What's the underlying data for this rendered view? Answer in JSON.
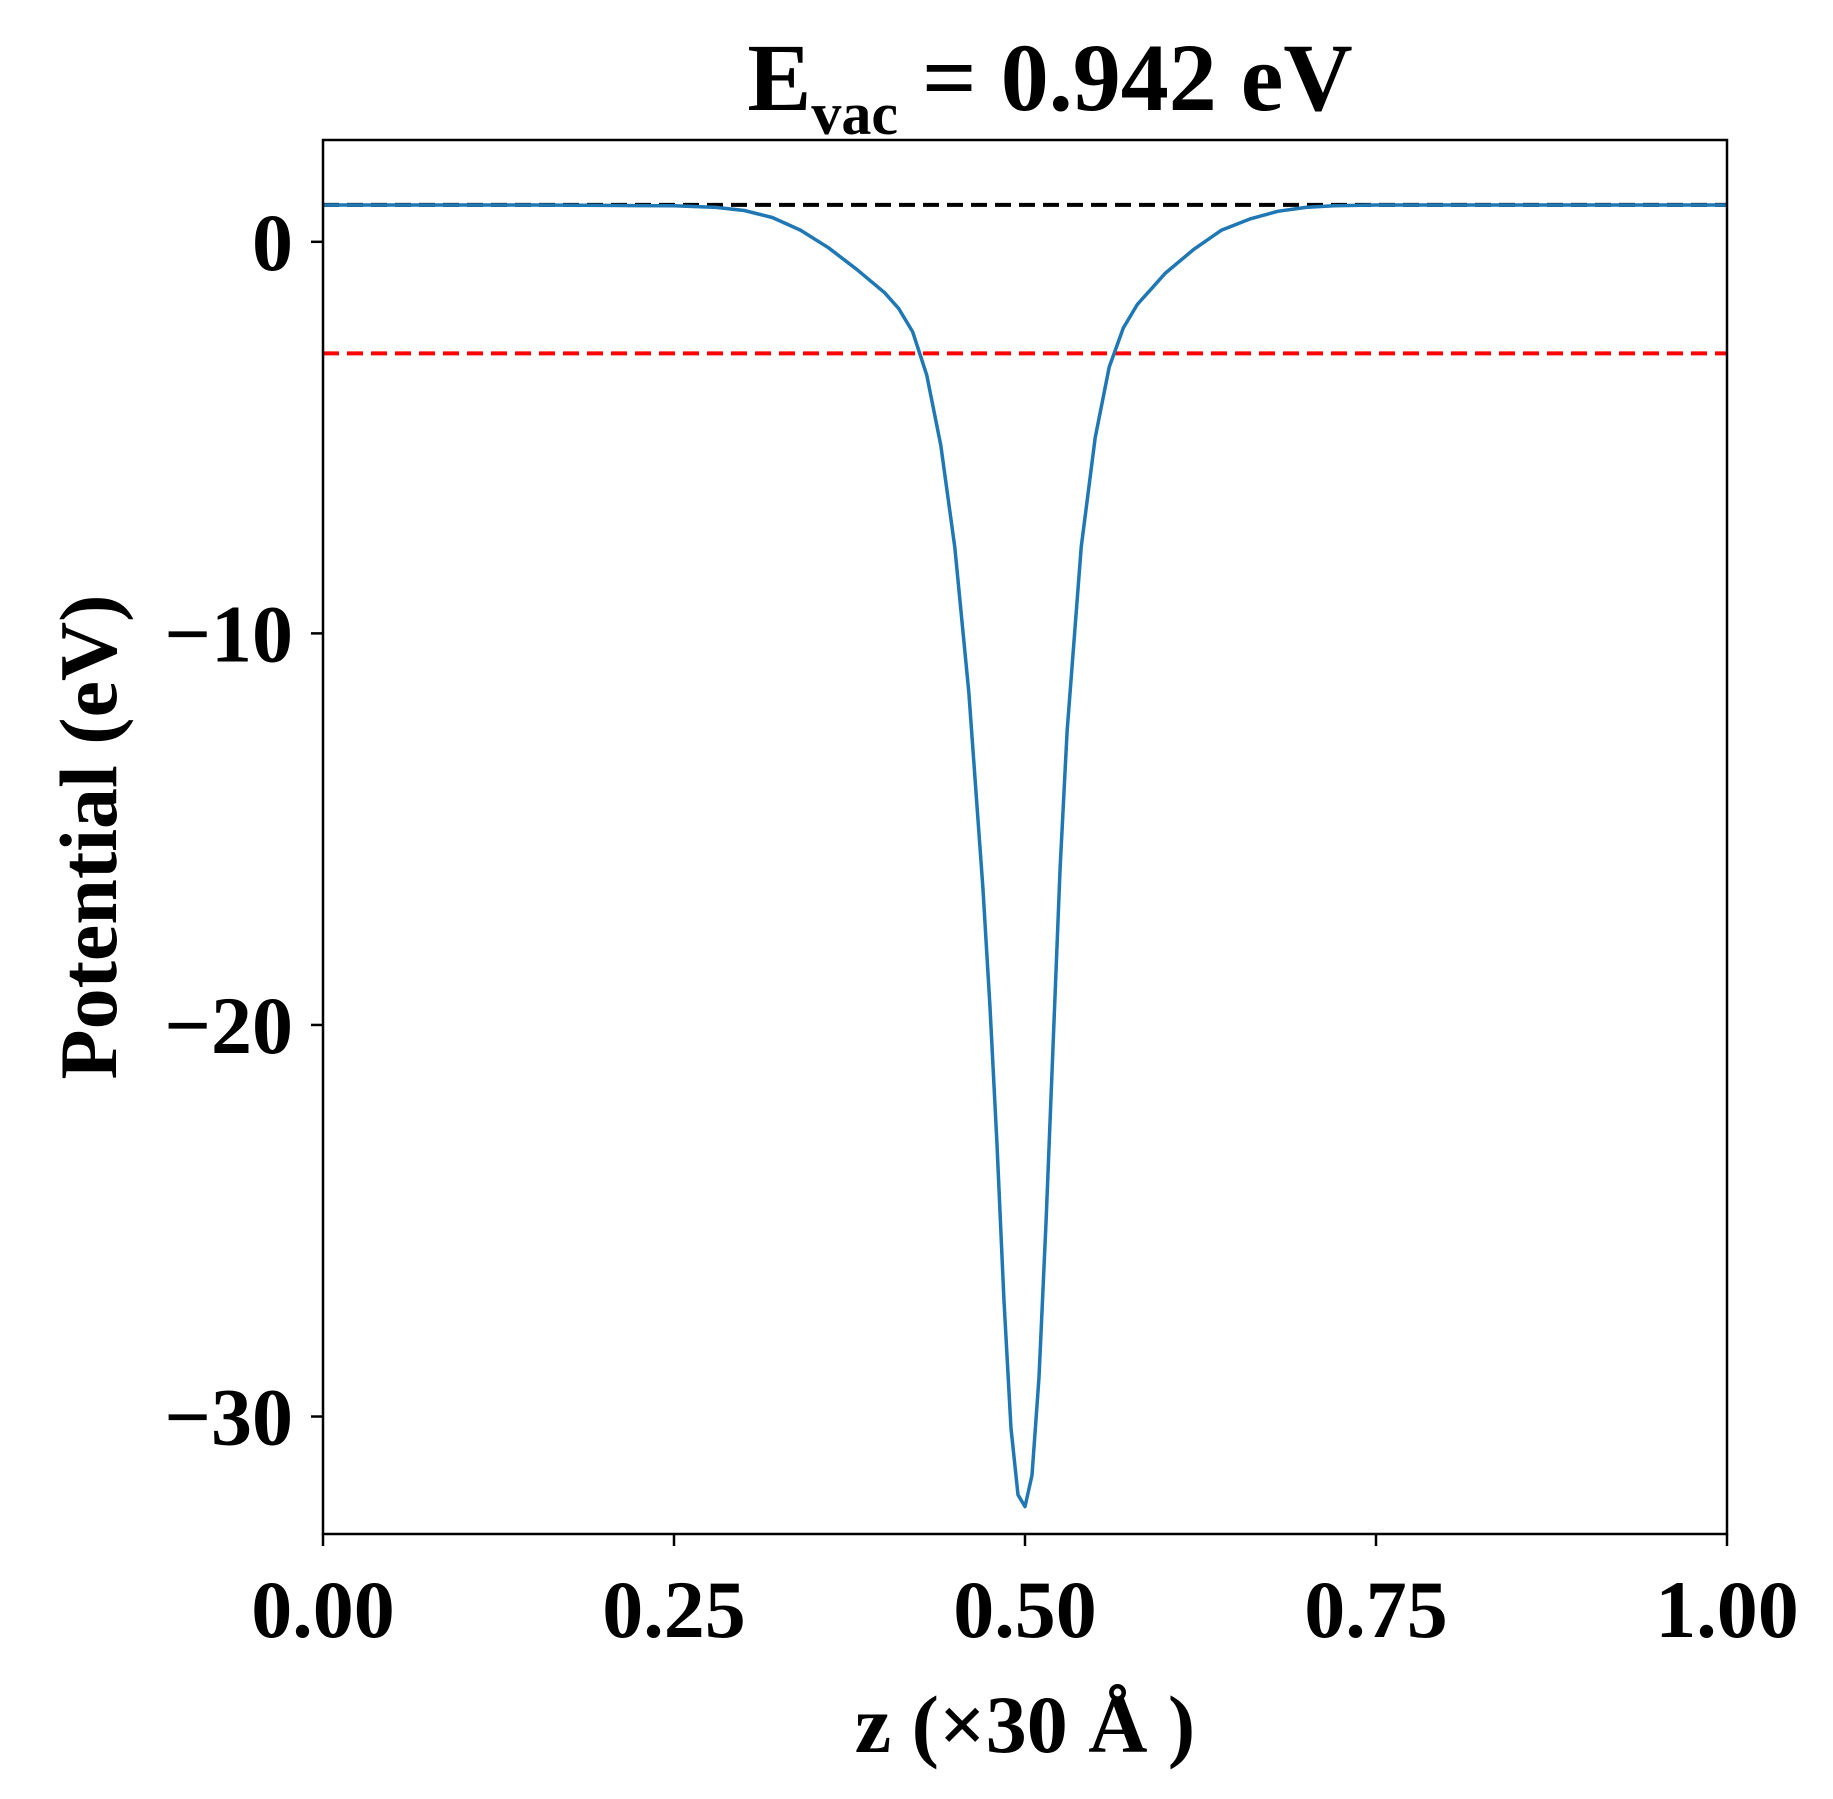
{
  "chart_data": {
    "type": "line",
    "title": {
      "main": "E",
      "subscript": "vac",
      "rest": " = 0.942 eV"
    },
    "xlabel": "z (×30 Å )",
    "ylabel": "Potential (eV)",
    "xlim": [
      0.0,
      1.0
    ],
    "ylim": [
      -33.0,
      2.6
    ],
    "grid": false,
    "legend": "none",
    "x_ticks": [
      {
        "value": 0.0,
        "label": "0.00"
      },
      {
        "value": 0.25,
        "label": "0.25"
      },
      {
        "value": 0.5,
        "label": "0.50"
      },
      {
        "value": 0.75,
        "label": "0.75"
      },
      {
        "value": 1.0,
        "label": "1.00"
      }
    ],
    "y_ticks": [
      {
        "value": 0,
        "label": "0"
      },
      {
        "value": -10,
        "label": "−10"
      },
      {
        "value": -20,
        "label": "−20"
      },
      {
        "value": -30,
        "label": "−30"
      }
    ],
    "reference_lines": [
      {
        "y": 0.942,
        "color": "#000000",
        "style": "dashed"
      },
      {
        "y": -2.85,
        "color": "#ff0000",
        "style": "dashed"
      }
    ],
    "series": [
      {
        "color": "#1f77b4",
        "x": [
          0.0,
          0.05,
          0.1,
          0.15,
          0.2,
          0.25,
          0.28,
          0.3,
          0.32,
          0.34,
          0.36,
          0.38,
          0.4,
          0.41,
          0.42,
          0.43,
          0.44,
          0.45,
          0.46,
          0.47,
          0.475,
          0.48,
          0.485,
          0.49,
          0.495,
          0.5,
          0.505,
          0.51,
          0.515,
          0.52,
          0.525,
          0.53,
          0.54,
          0.55,
          0.56,
          0.57,
          0.58,
          0.59,
          0.6,
          0.62,
          0.64,
          0.66,
          0.68,
          0.7,
          0.72,
          0.75,
          0.8,
          0.85,
          0.9,
          0.95,
          1.0
        ],
        "y": [
          0.94,
          0.94,
          0.94,
          0.94,
          0.93,
          0.92,
          0.88,
          0.8,
          0.62,
          0.3,
          -0.15,
          -0.7,
          -1.3,
          -1.7,
          -2.3,
          -3.4,
          -5.2,
          -7.8,
          -11.5,
          -16.5,
          -19.5,
          -23.0,
          -27.0,
          -30.3,
          -32.0,
          -32.3,
          -31.5,
          -29.0,
          -25.0,
          -20.5,
          -16.0,
          -12.5,
          -7.8,
          -5.0,
          -3.2,
          -2.2,
          -1.6,
          -1.2,
          -0.8,
          -0.2,
          0.3,
          0.58,
          0.78,
          0.88,
          0.92,
          0.94,
          0.94,
          0.94,
          0.94,
          0.94,
          0.94
        ]
      }
    ]
  }
}
